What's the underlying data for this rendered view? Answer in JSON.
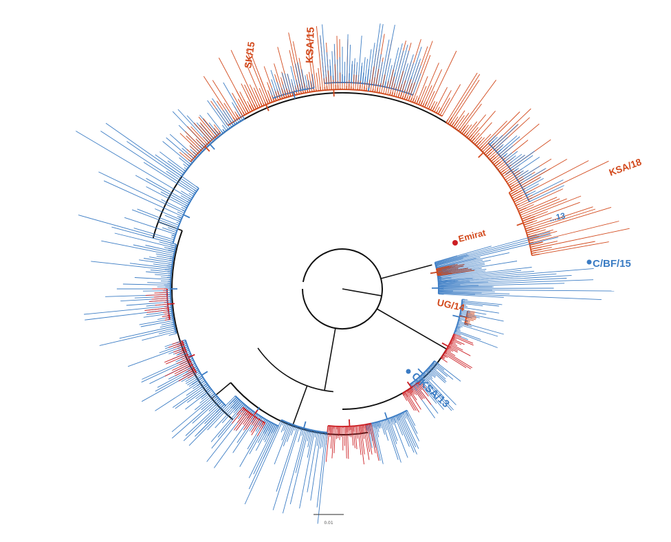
{
  "colors": {
    "orange": "#d2491c",
    "red": "#cc1e23",
    "blue": "#3b7cc4",
    "black": "#111111"
  },
  "labels": {
    "sk15": "SK/15",
    "ksa15": "KSA/15",
    "ksa18": "KSA/18",
    "label_ne13": "...13",
    "emirate": "Emirat",
    "cbf15": "C/BF/15",
    "ug14": "UG/14",
    "cksa13": "C/KSA/13",
    "scale": "0.01"
  }
}
